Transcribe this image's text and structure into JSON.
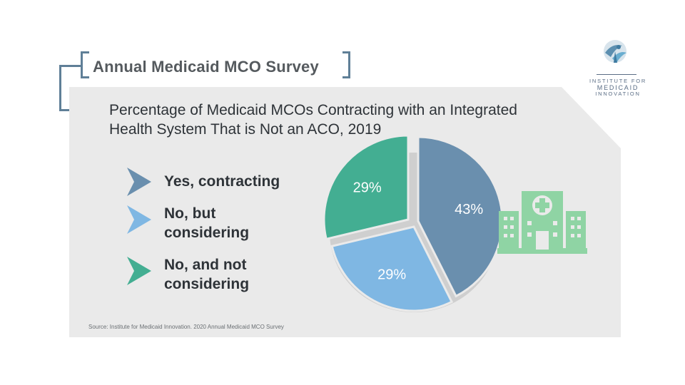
{
  "header": {
    "survey_title": "Annual Medicaid MCO Survey"
  },
  "logo": {
    "lines": [
      "INSTITUTE FOR",
      "MEDICAID",
      "INNOVATION"
    ]
  },
  "chart_data": {
    "type": "pie",
    "title": "Percentage of Medicaid MCOs Contracting with an Integrated Health System That is Not an ACO, 2019",
    "slices": [
      {
        "label": "Yes, contracting",
        "value": 43,
        "display": "43%",
        "color": "#6a8fae"
      },
      {
        "label": "No, but considering",
        "value": 29,
        "display": "29%",
        "color": "#7fb7e3"
      },
      {
        "label": "No, and not considering",
        "value": 29,
        "display": "29%",
        "color": "#43ae92"
      }
    ],
    "legend_position": "left",
    "source": "Source: Institute for Medicaid Innovation. 2020 Annual Medicaid MCO Survey"
  },
  "colors": {
    "frame": "#5f7f97",
    "panel": "#eaeaea",
    "hospital_icon": "#8fd4a4"
  },
  "icons": {
    "hospital": "hospital-icon"
  }
}
